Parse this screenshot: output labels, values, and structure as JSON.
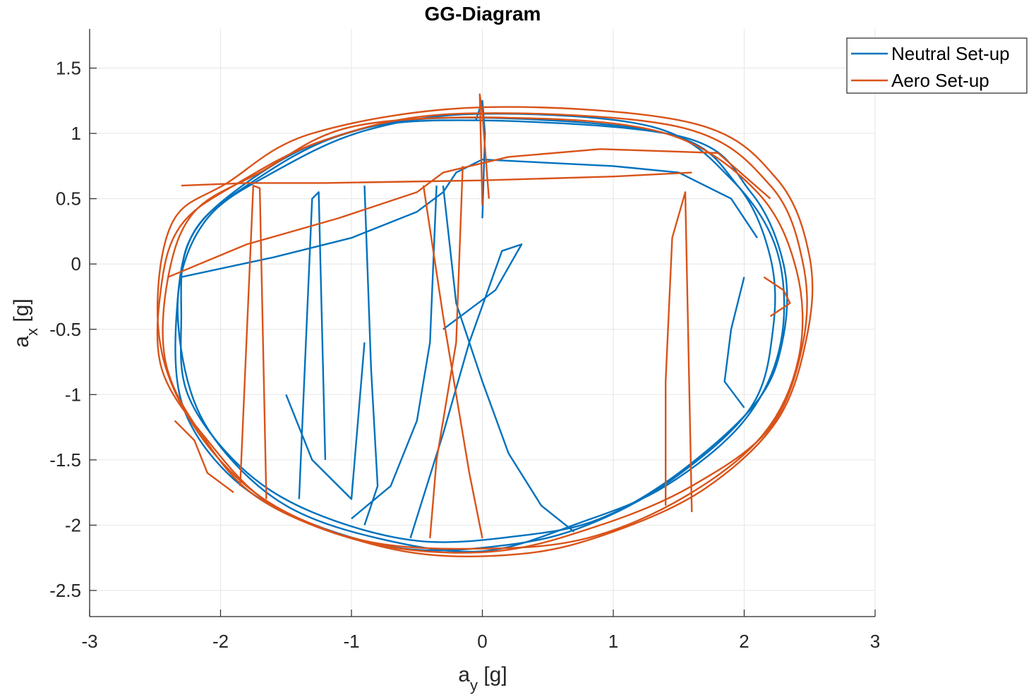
{
  "chart_data": {
    "type": "line",
    "title": "GG-Diagram",
    "xlabel": {
      "base": "a",
      "sub": "y",
      "unit": " [g]"
    },
    "ylabel": {
      "base": "a",
      "sub": "x",
      "unit": " [g]"
    },
    "xlim": [
      -3,
      3
    ],
    "ylim": [
      -2.7,
      1.8
    ],
    "xticks": [
      -3,
      -2,
      -1,
      0,
      1,
      2,
      3
    ],
    "xtick_labels": [
      "-3",
      "-2",
      "-1",
      "0",
      "1",
      "2",
      "3"
    ],
    "yticks": [
      -2.5,
      -2,
      -1.5,
      -1,
      -0.5,
      0,
      0.5,
      1,
      1.5
    ],
    "ytick_labels": [
      "-2.5",
      "-2",
      "-1.5",
      "-1",
      "-0.5",
      "0",
      "0.5",
      "1",
      "1.5"
    ],
    "grid": true,
    "legend_position": "top-right",
    "series": [
      {
        "name": "Neutral Set-up",
        "color": "#0072BD",
        "loops": [
          {
            "x": [
              -0.3,
              1.5,
              2.05,
              2.3,
              2.3,
              2.1,
              1.5,
              0.9,
              0.3,
              -0.5,
              -1.3,
              -1.85,
              -2.25,
              -2.3,
              -2.25,
              -1.9,
              -1.2,
              -0.3
            ],
            "y": [
              1.1,
              0.98,
              0.55,
              0.0,
              -0.55,
              -1.05,
              -1.6,
              -1.95,
              -2.08,
              -2.12,
              -1.9,
              -1.55,
              -1.0,
              -0.4,
              0.15,
              0.55,
              0.95,
              1.1
            ]
          },
          {
            "x": [
              -0.2,
              1.4,
              1.95,
              2.2,
              2.22,
              2.05,
              1.45,
              0.8,
              0.2,
              -0.6,
              -1.4,
              -1.95,
              -2.3,
              -2.33,
              -2.2,
              -1.8,
              -1.1,
              -0.2
            ],
            "y": [
              1.12,
              1.0,
              0.6,
              0.05,
              -0.5,
              -1.1,
              -1.65,
              -2.0,
              -2.15,
              -2.18,
              -1.95,
              -1.6,
              -1.05,
              -0.3,
              0.25,
              0.6,
              0.98,
              1.12
            ]
          },
          {
            "x": [
              0.0,
              1.3,
              1.9,
              2.25,
              2.28,
              2.0,
              1.4,
              0.75,
              0.0,
              -0.8,
              -1.5,
              -2.0,
              -2.25,
              -2.32,
              -2.1,
              -1.6,
              -0.9,
              0.0
            ],
            "y": [
              1.15,
              1.05,
              0.65,
              0.1,
              -0.6,
              -1.2,
              -1.7,
              -1.98,
              -2.2,
              -2.1,
              -1.85,
              -1.4,
              -0.9,
              -0.2,
              0.35,
              0.7,
              1.02,
              1.15
            ]
          }
        ],
        "strokes": [
          {
            "x": [
              -2.3,
              -1.6,
              -1.0,
              -0.5,
              -0.3,
              -0.2,
              0.0,
              1.0,
              1.5,
              1.9,
              2.1
            ],
            "y": [
              -0.1,
              0.05,
              0.2,
              0.4,
              0.55,
              0.7,
              0.8,
              0.75,
              0.7,
              0.5,
              0.2
            ]
          },
          {
            "x": [
              -0.35,
              -0.4,
              -0.5,
              -0.7,
              -1.0
            ],
            "y": [
              0.6,
              -0.6,
              -1.2,
              -1.7,
              -1.95
            ]
          },
          {
            "x": [
              -0.3,
              -0.2,
              0.0,
              0.2,
              0.45,
              0.7
            ],
            "y": [
              0.6,
              -0.3,
              -0.9,
              -1.45,
              -1.85,
              -2.05
            ]
          },
          {
            "x": [
              -0.55,
              -0.3,
              -0.1,
              0.15,
              0.3,
              0.1,
              -0.3
            ],
            "y": [
              -2.1,
              -1.3,
              -0.6,
              0.1,
              0.15,
              -0.2,
              -0.5
            ]
          },
          {
            "x": [
              0.0,
              0.02,
              0.0,
              -0.05
            ],
            "y": [
              0.35,
              1.0,
              1.25,
              1.1
            ]
          },
          {
            "x": [
              -1.5,
              -1.3,
              -1.0,
              -0.9
            ],
            "y": [
              -1.0,
              -1.5,
              -1.8,
              -0.6
            ]
          },
          {
            "x": [
              -1.4,
              -1.3,
              -1.25,
              -1.2
            ],
            "y": [
              -1.8,
              0.5,
              0.55,
              -1.5
            ]
          },
          {
            "x": [
              -0.9,
              -0.85,
              -0.8,
              -0.9
            ],
            "y": [
              0.6,
              -0.8,
              -1.7,
              -2.0
            ]
          },
          {
            "x": [
              2.0,
              1.9,
              1.85,
              2.0
            ],
            "y": [
              -0.1,
              -0.5,
              -0.9,
              -1.1
            ]
          }
        ]
      },
      {
        "name": "Aero Set-up",
        "color": "#D95319",
        "loops": [
          {
            "x": [
              -0.2,
              1.5,
              2.2,
              2.45,
              2.45,
              2.2,
              1.6,
              0.9,
              0.1,
              -0.8,
              -1.6,
              -2.1,
              -2.45,
              -2.45,
              -2.3,
              -1.9,
              -1.2,
              -0.2
            ],
            "y": [
              1.15,
              1.05,
              0.6,
              0.0,
              -0.6,
              -1.25,
              -1.7,
              -2.0,
              -2.2,
              -2.15,
              -1.85,
              -1.35,
              -0.8,
              -0.15,
              0.3,
              0.6,
              0.95,
              1.15
            ]
          },
          {
            "x": [
              0.0,
              1.6,
              2.25,
              2.5,
              2.48,
              2.25,
              1.7,
              1.0,
              0.3,
              -0.6,
              -1.5,
              -2.05,
              -2.4,
              -2.48,
              -2.35,
              -1.95,
              -1.3,
              0.0
            ],
            "y": [
              1.2,
              1.08,
              0.65,
              0.05,
              -0.55,
              -1.2,
              -1.72,
              -2.05,
              -2.22,
              -2.2,
              -1.9,
              -1.45,
              -0.85,
              -0.25,
              0.35,
              0.62,
              1.0,
              1.2
            ]
          },
          {
            "x": [
              0.2,
              1.4,
              2.1,
              2.4,
              2.42,
              2.15,
              1.55,
              0.8,
              0.0,
              -0.9,
              -1.7,
              -2.15,
              -2.42,
              -2.4,
              -2.2,
              -1.7,
              -1.0,
              0.2
            ],
            "y": [
              1.12,
              1.0,
              0.55,
              -0.05,
              -0.7,
              -1.3,
              -1.78,
              -2.1,
              -2.18,
              -2.12,
              -1.8,
              -1.3,
              -0.75,
              -0.1,
              0.4,
              0.7,
              1.05,
              1.12
            ]
          }
        ],
        "strokes": [
          {
            "x": [
              -2.4,
              -1.8,
              -1.1,
              -0.5,
              -0.3,
              0.2,
              0.9,
              1.8,
              2.2
            ],
            "y": [
              -0.1,
              0.15,
              0.35,
              0.55,
              0.7,
              0.82,
              0.88,
              0.85,
              0.5
            ]
          },
          {
            "x": [
              -2.3,
              -1.8,
              -1.2,
              0.0,
              1.0,
              1.6
            ],
            "y": [
              0.6,
              0.62,
              0.62,
              0.64,
              0.67,
              0.7
            ]
          },
          {
            "x": [
              -0.45,
              -0.3,
              -0.2,
              -0.1,
              0.0
            ],
            "y": [
              0.6,
              -0.4,
              -1.0,
              -1.6,
              -2.1
            ]
          },
          {
            "x": [
              -0.15,
              -0.2,
              -0.35,
              -0.4
            ],
            "y": [
              0.75,
              -0.6,
              -1.5,
              -2.1
            ]
          },
          {
            "x": [
              0.0,
              -0.02,
              0.0,
              0.05
            ],
            "y": [
              0.45,
              1.3,
              1.15,
              0.5
            ]
          },
          {
            "x": [
              1.4,
              1.4,
              1.45,
              1.55,
              1.6
            ],
            "y": [
              -1.85,
              -0.9,
              0.2,
              0.55,
              -1.9
            ]
          },
          {
            "x": [
              -1.85,
              -1.75,
              -1.7,
              -1.65
            ],
            "y": [
              -1.7,
              0.6,
              0.58,
              -1.8
            ]
          },
          {
            "x": [
              -2.35,
              -2.2,
              -2.1,
              -1.9
            ],
            "y": [
              -1.2,
              -1.35,
              -1.6,
              -1.75
            ]
          },
          {
            "x": [
              2.15,
              2.3,
              2.35,
              2.2
            ],
            "y": [
              -0.1,
              -0.2,
              -0.3,
              -0.4
            ]
          }
        ]
      }
    ]
  }
}
